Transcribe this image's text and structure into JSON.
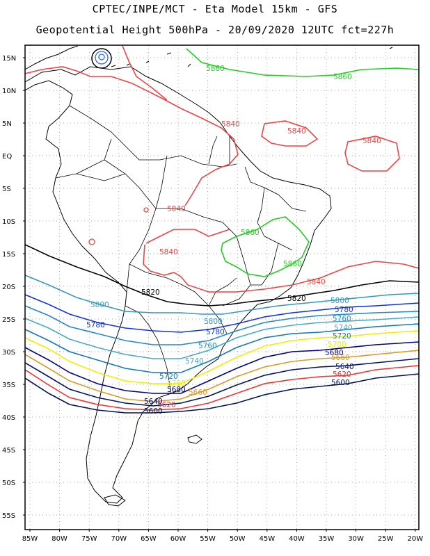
{
  "title": {
    "line1": "CPTEC/INPE/MCT -  Eta Model 15km - GFS",
    "line2": "Geopotential Height 500hPa - 20/09/2020 12UTC fct=227h"
  },
  "axes": {
    "lat_ticks": [
      "15N",
      "10N",
      "5N",
      "EQ",
      "5S",
      "10S",
      "15S",
      "20S",
      "25S",
      "30S",
      "35S",
      "40S",
      "45S",
      "50S",
      "55S"
    ],
    "lon_ticks": [
      "85W",
      "80W",
      "75W",
      "70W",
      "65W",
      "60W",
      "55W",
      "50W",
      "45W",
      "40W",
      "35W",
      "30W",
      "25W",
      "20W"
    ],
    "lat_range": [
      -58,
      15.5
    ],
    "lon_range": [
      -85.5,
      -20
    ],
    "grid": "dotted"
  },
  "colors": {
    "5860": "#22cc22",
    "5840": "#ee4444",
    "5820": "#000000",
    "5800": "#3399bb",
    "5780": "#1133dd",
    "5760": "#2288cc",
    "5740": "#44aacc",
    "5720": "#1177bb",
    "5700": "#eeee00",
    "5680": "#000080",
    "5660": "#dd9922",
    "5640": "#001166",
    "5620": "#ee3333",
    "5600": "#001155",
    "coast": "#000000",
    "vortex": "#3366ff"
  },
  "contour_labels": [
    {
      "text": "5860",
      "color": "5860"
    },
    {
      "text": "5860",
      "color": "5860"
    },
    {
      "text": "5860",
      "color": "5860"
    },
    {
      "text": "5860",
      "color": "5860"
    },
    {
      "text": "5840",
      "color": "5840"
    },
    {
      "text": "5840",
      "color": "5840"
    },
    {
      "text": "5840",
      "color": "5840"
    },
    {
      "text": "5840",
      "color": "5840"
    },
    {
      "text": "5840",
      "color": "5840"
    },
    {
      "text": "5840",
      "color": "5840"
    },
    {
      "text": "5820",
      "color": "5820"
    },
    {
      "text": "5820",
      "color": "5820"
    },
    {
      "text": "5800",
      "color": "5800"
    },
    {
      "text": "5800",
      "color": "5800"
    },
    {
      "text": "5800",
      "color": "5800"
    },
    {
      "text": "5780",
      "color": "5780"
    },
    {
      "text": "5780",
      "color": "5780"
    },
    {
      "text": "5780",
      "color": "5780"
    },
    {
      "text": "5760",
      "color": "5760"
    },
    {
      "text": "5760",
      "color": "5760"
    },
    {
      "text": "5740",
      "color": "5740"
    },
    {
      "text": "5740",
      "color": "5740"
    },
    {
      "text": "5720",
      "color": "5720"
    },
    {
      "text": "5720",
      "color": "5720"
    },
    {
      "text": "5700",
      "color": "5700"
    },
    {
      "text": "5700",
      "color": "5700"
    },
    {
      "text": "5680",
      "color": "5680"
    },
    {
      "text": "5680",
      "color": "5680"
    },
    {
      "text": "5660",
      "color": "5660"
    },
    {
      "text": "5660",
      "color": "5660"
    },
    {
      "text": "5640",
      "color": "5640"
    },
    {
      "text": "5640",
      "color": "5640"
    },
    {
      "text": "5620",
      "color": "5620"
    },
    {
      "text": "5620",
      "color": "5620"
    },
    {
      "text": "5600",
      "color": "5600"
    },
    {
      "text": "5600",
      "color": "5600"
    }
  ]
}
